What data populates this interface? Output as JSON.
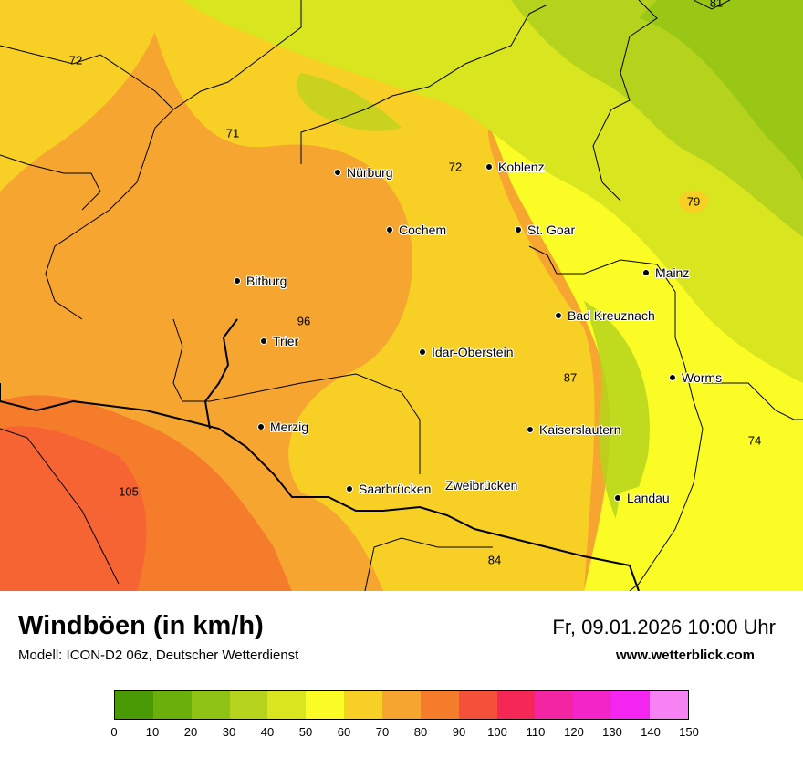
{
  "map": {
    "cities": [
      {
        "name": "Nürburg"
      },
      {
        "name": "Koblenz"
      },
      {
        "name": "Cochem"
      },
      {
        "name": "St. Goar"
      },
      {
        "name": "Mainz"
      },
      {
        "name": "Bitburg"
      },
      {
        "name": "Bad Kreuznach"
      },
      {
        "name": "Trier"
      },
      {
        "name": "Idar-Oberstein"
      },
      {
        "name": "Worms"
      },
      {
        "name": "Merzig"
      },
      {
        "name": "Kaiserslautern"
      },
      {
        "name": "Saarbrücken"
      },
      {
        "name": "Zweibrücken"
      },
      {
        "name": "Landau"
      }
    ],
    "values": [
      "81",
      "72",
      "71",
      "72",
      "79",
      "96",
      "87",
      "74",
      "105",
      "84"
    ]
  },
  "footer": {
    "title": "Windböen (in km/h)",
    "model": "Modell: ICON-D2 06z, Deutscher Wetterdienst",
    "date": "Fr, 09.01.2026 10:00 Uhr",
    "website": "www.wetterblick.com"
  },
  "legend": {
    "colors": [
      "#4a9a06",
      "#6aaf0c",
      "#8ec214",
      "#b5d31c",
      "#d9e51e",
      "#fbfb25",
      "#f8cf24",
      "#f6a531",
      "#f57c2a",
      "#f5503a",
      "#f42757",
      "#f425a3",
      "#f425c8",
      "#f425f0",
      "#f682f4"
    ],
    "ticks": [
      "0",
      "10",
      "20",
      "30",
      "40",
      "50",
      "60",
      "70",
      "80",
      "90",
      "100",
      "110",
      "120",
      "130",
      "140",
      "150"
    ]
  }
}
